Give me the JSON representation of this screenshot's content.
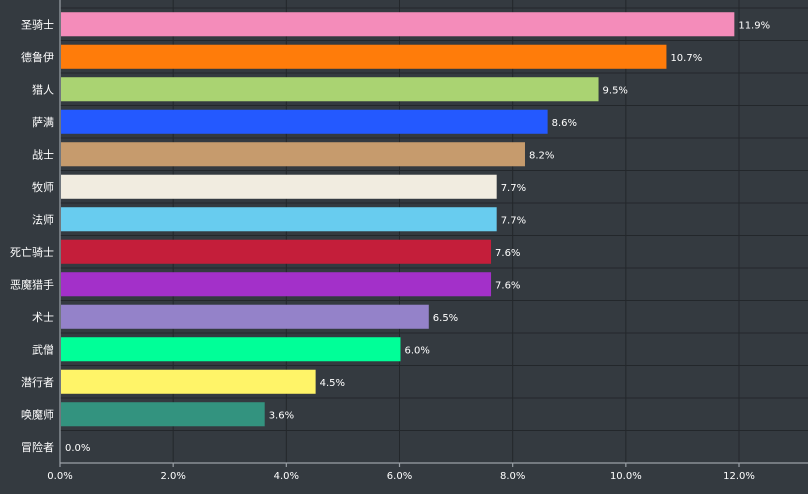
{
  "chart_data": {
    "type": "bar",
    "orientation": "horizontal",
    "categories": [
      "圣骑士",
      "德鲁伊",
      "猎人",
      "萨满",
      "战士",
      "牧师",
      "法师",
      "死亡骑士",
      "恶魔猎手",
      "术士",
      "武僧",
      "潜行者",
      "唤魔师",
      "冒险者"
    ],
    "values": [
      11.9,
      10.7,
      9.5,
      8.6,
      8.2,
      7.7,
      7.7,
      7.6,
      7.6,
      6.5,
      6.0,
      4.5,
      3.6,
      0.0
    ],
    "value_labels": [
      "11.9%",
      "10.7%",
      "9.5%",
      "8.6%",
      "8.2%",
      "7.7%",
      "7.7%",
      "7.6%",
      "7.6%",
      "6.5%",
      "6.0%",
      "4.5%",
      "3.6%",
      "0.0%"
    ],
    "colors": [
      "#f48cba",
      "#ff7c0a",
      "#aad372",
      "#2459ff",
      "#c69b6d",
      "#f1ece0",
      "#68ccef",
      "#c41e3a",
      "#a330c9",
      "#9482c9",
      "#00ff98",
      "#fff468",
      "#33937f",
      "#cccccc"
    ],
    "xticks": [
      0,
      2,
      4,
      6,
      8,
      10,
      12
    ],
    "xtick_labels": [
      "0.0%",
      "2.0%",
      "4.0%",
      "6.0%",
      "8.0%",
      "10.0%",
      "12.0%"
    ],
    "xlim": [
      0,
      13.2
    ],
    "title": "",
    "xlabel": "",
    "ylabel": "",
    "grid": true,
    "background": "#343a40"
  }
}
